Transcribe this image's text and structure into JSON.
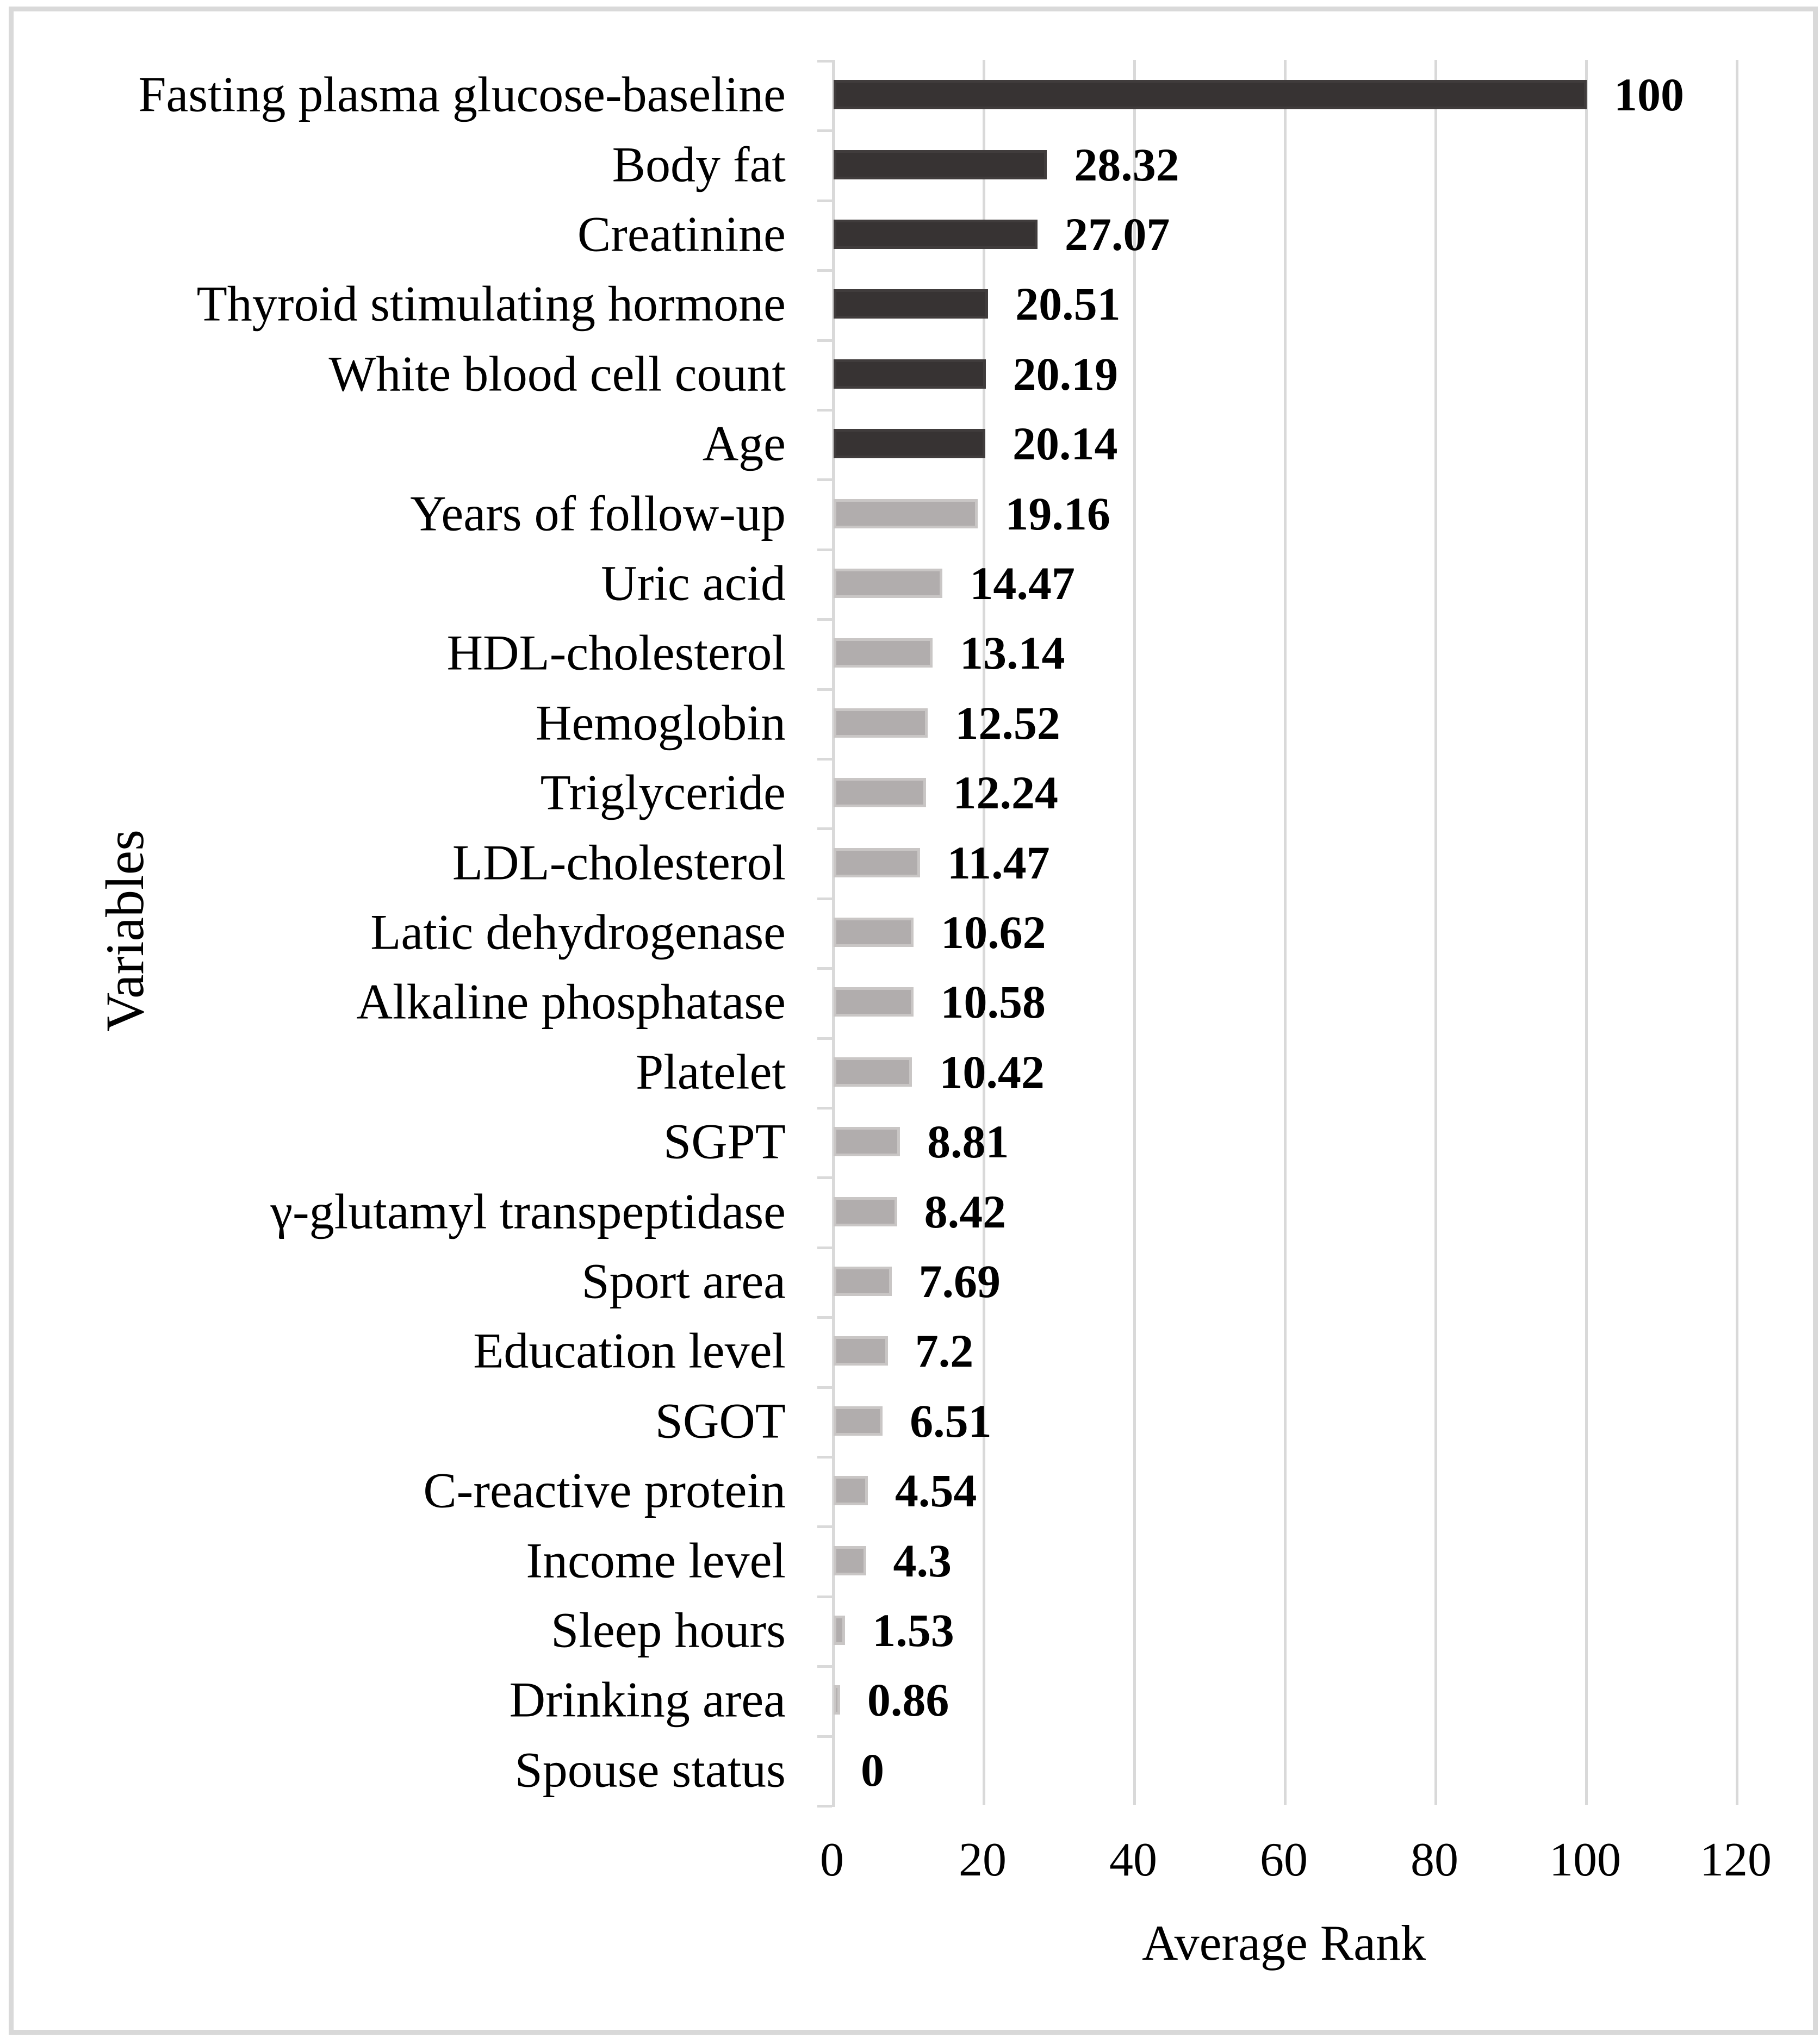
{
  "chart_data": {
    "type": "bar",
    "orientation": "horizontal",
    "title": "",
    "xlabel": "Average Rank",
    "ylabel": "Variables",
    "xlim": [
      0,
      120
    ],
    "x_ticks": [
      0,
      20,
      40,
      60,
      80,
      100,
      120
    ],
    "grid": "vertical-gridlines-on",
    "legend": "none",
    "categories": [
      "Fasting plasma glucose-baseline",
      "Body fat",
      "Creatinine",
      "Thyroid stimulating hormone",
      "White blood cell count",
      "Age",
      "Years of follow-up",
      "Uric acid",
      "HDL-cholesterol",
      "Hemoglobin",
      "Triglyceride",
      "LDL-cholesterol",
      "Latic dehydrogenase",
      "Alkaline phosphatase",
      "Platelet",
      "SGPT",
      "γ-glutamyl transpeptidase",
      "Sport area",
      "Education level",
      "SGOT",
      "C-reactive protein",
      "Income level",
      "Sleep hours",
      "Drinking area",
      "Spouse status"
    ],
    "values": [
      100,
      28.32,
      27.07,
      20.51,
      20.19,
      20.14,
      19.16,
      14.47,
      13.14,
      12.52,
      12.24,
      11.47,
      10.62,
      10.58,
      10.42,
      8.81,
      8.42,
      7.69,
      7.2,
      6.51,
      4.54,
      4.3,
      1.53,
      0.86,
      0
    ],
    "value_labels": [
      "100",
      "28.32",
      "27.07",
      "20.51",
      "20.19",
      "20.14",
      "19.16",
      "14.47",
      "13.14",
      "12.52",
      "12.24",
      "11.47",
      "10.62",
      "10.58",
      "10.42",
      "8.81",
      "8.42",
      "7.69",
      "7.2",
      "6.51",
      "4.54",
      "4.3",
      "1.53",
      "0.86",
      "0"
    ],
    "series_color_rule": "first 6 bars dark, remaining bars gray",
    "dark_bar_count": 6,
    "colors": {
      "dark_bar_fill": "#373333",
      "dark_bar_border": "#403c3c",
      "gray_bar_fill": "#b1adad",
      "gray_bar_border": "#c9c6c5",
      "gridline": "#d9d9d9",
      "frame_border": "#d9d9d9",
      "text": "#000000"
    }
  }
}
